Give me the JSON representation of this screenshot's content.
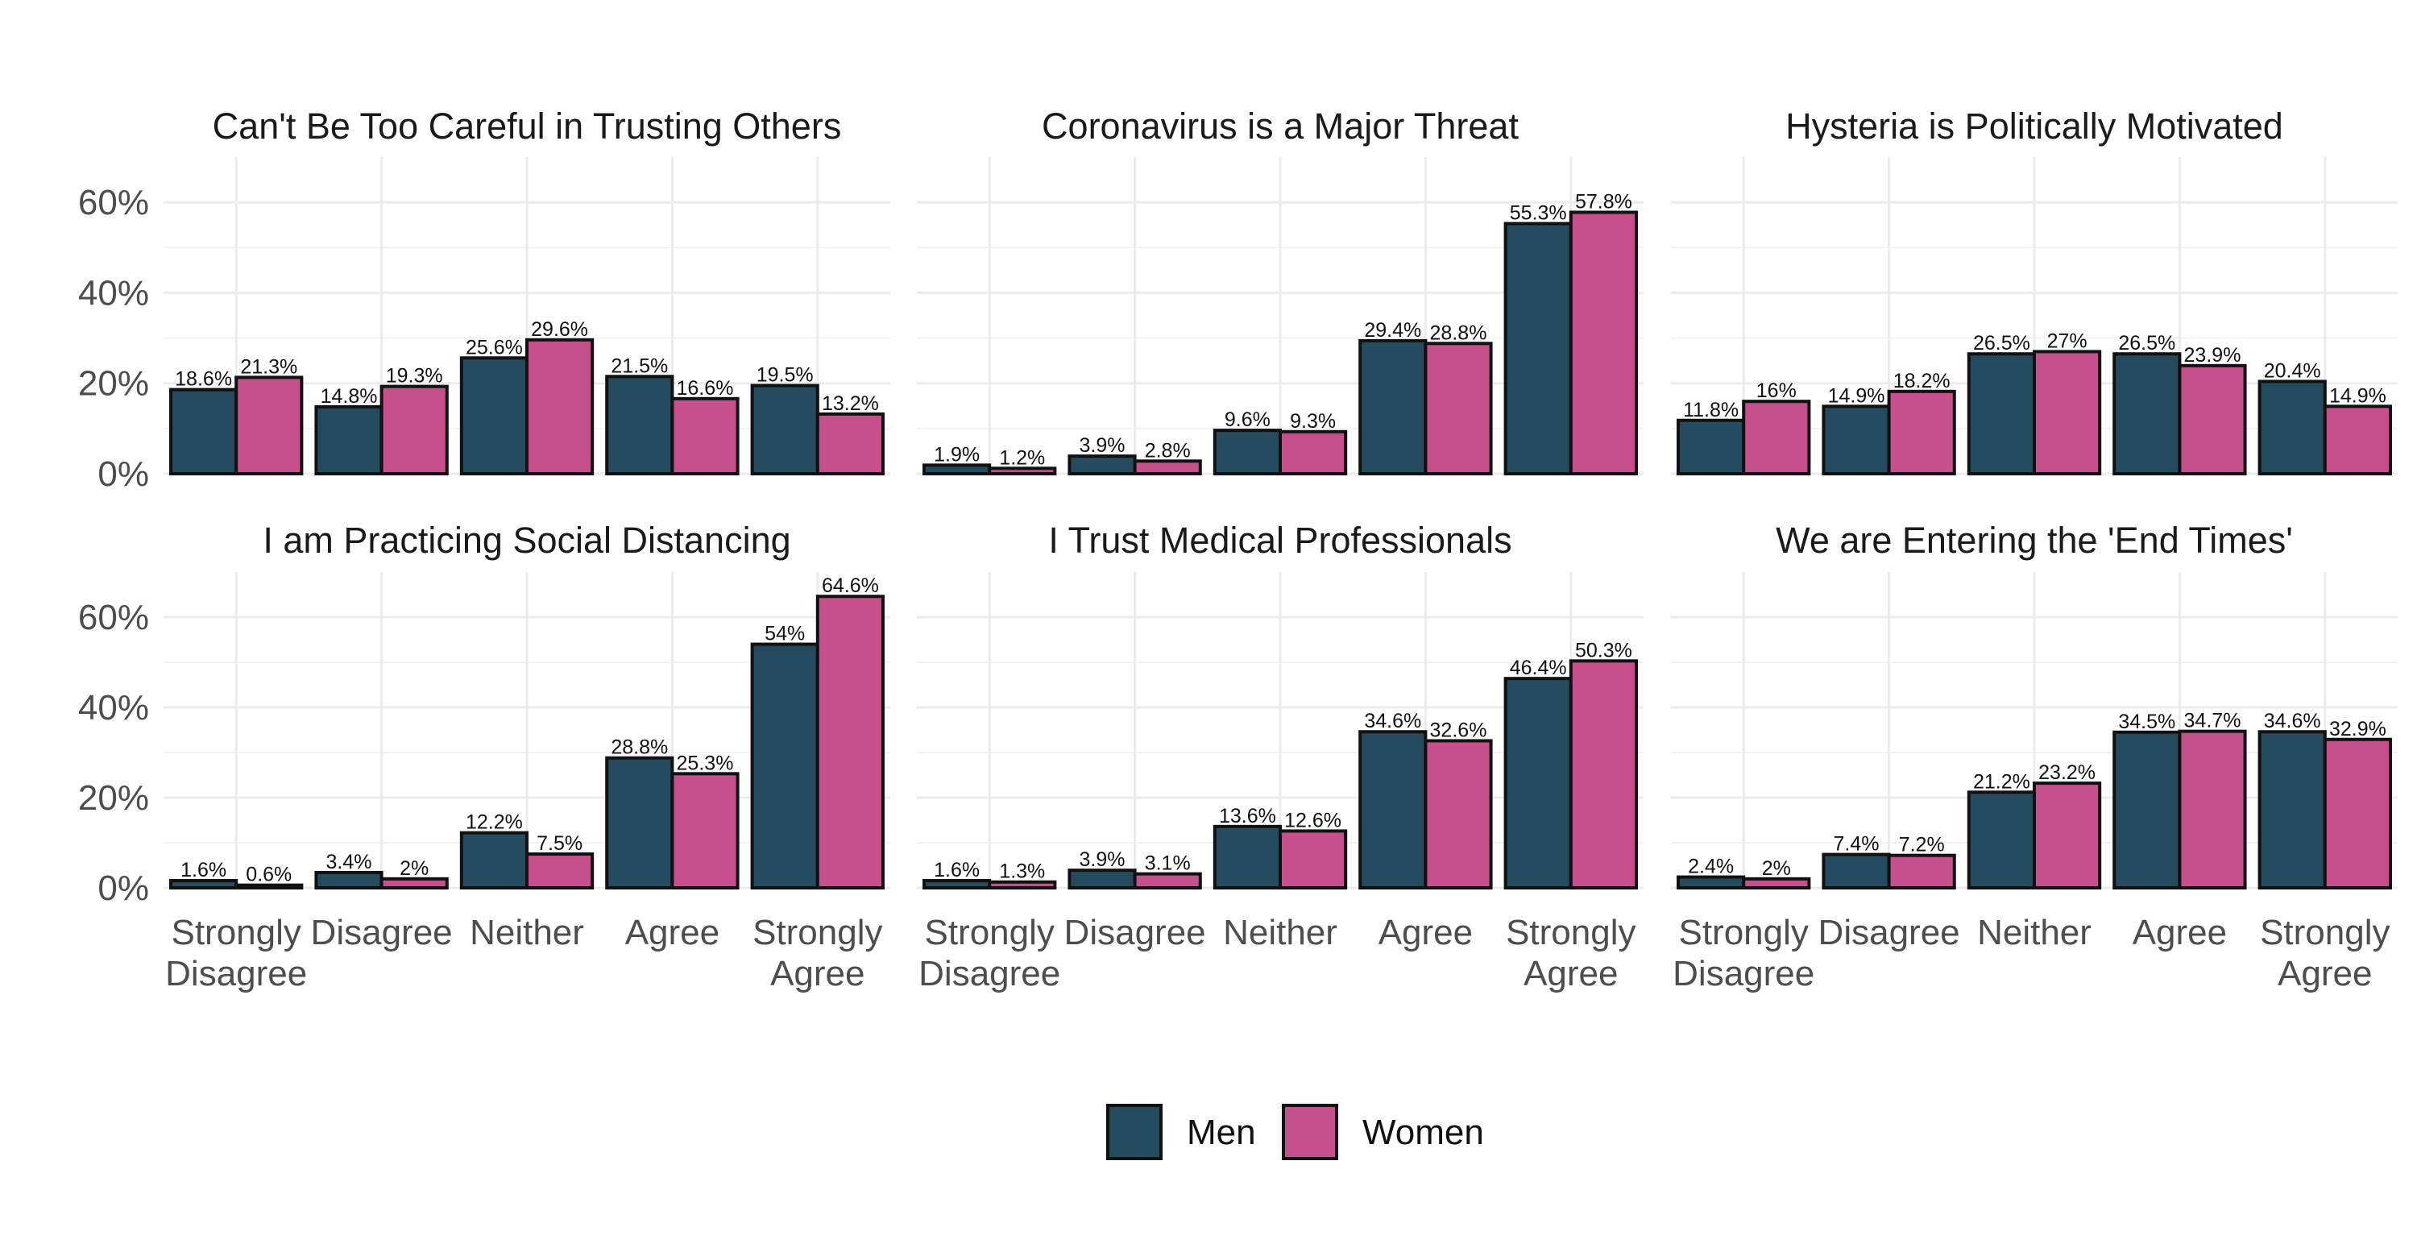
{
  "chart_data": {
    "type": "bar",
    "categories": [
      "Strongly Disagree",
      "Disagree",
      "Neither",
      "Agree",
      "Strongly Agree"
    ],
    "x_tick_lines": [
      [
        "Strongly",
        "Disagree"
      ],
      [
        "Disagree"
      ],
      [
        "Neither"
      ],
      [
        "Agree"
      ],
      [
        "Strongly",
        "Agree"
      ]
    ],
    "y_ticks": [
      "0%",
      "20%",
      "40%",
      "60%"
    ],
    "ylim": [
      0,
      70
    ],
    "grid": true,
    "legend_position": "bottom",
    "series_names": [
      "Men",
      "Women"
    ],
    "colors": {
      "Men": "#264b5f",
      "Women": "#c6508c"
    },
    "panels": [
      {
        "title": "Can't Be Too Careful in Trusting Others",
        "men": [
          18.6,
          14.8,
          25.6,
          21.5,
          19.5
        ],
        "women": [
          21.3,
          19.3,
          29.6,
          16.6,
          13.2
        ],
        "men_labels": [
          "18.6%",
          "14.8%",
          "25.6%",
          "21.5%",
          "19.5%"
        ],
        "women_labels": [
          "21.3%",
          "19.3%",
          "29.6%",
          "16.6%",
          "13.2%"
        ]
      },
      {
        "title": "Coronavirus is a Major Threat",
        "men": [
          1.9,
          3.9,
          9.6,
          29.4,
          55.3
        ],
        "women": [
          1.2,
          2.8,
          9.3,
          28.8,
          57.8
        ],
        "men_labels": [
          "1.9%",
          "3.9%",
          "9.6%",
          "29.4%",
          "55.3%"
        ],
        "women_labels": [
          "1.2%",
          "2.8%",
          "9.3%",
          "28.8%",
          "57.8%"
        ]
      },
      {
        "title": "Hysteria is Politically Motivated",
        "men": [
          11.8,
          14.9,
          26.5,
          26.5,
          20.4
        ],
        "women": [
          16,
          18.2,
          27,
          23.9,
          14.9
        ],
        "men_labels": [
          "11.8%",
          "14.9%",
          "26.5%",
          "26.5%",
          "20.4%"
        ],
        "women_labels": [
          "16%",
          "18.2%",
          "27%",
          "23.9%",
          "14.9%"
        ]
      },
      {
        "title": "I am Practicing Social Distancing",
        "men": [
          1.6,
          3.4,
          12.2,
          28.8,
          54
        ],
        "women": [
          0.6,
          2,
          7.5,
          25.3,
          64.6
        ],
        "men_labels": [
          "1.6%",
          "3.4%",
          "12.2%",
          "28.8%",
          "54%"
        ],
        "women_labels": [
          "0.6%",
          "2%",
          "7.5%",
          "25.3%",
          "64.6%"
        ]
      },
      {
        "title": "I Trust Medical Professionals",
        "men": [
          1.6,
          3.9,
          13.6,
          34.6,
          46.4
        ],
        "women": [
          1.3,
          3.1,
          12.6,
          32.6,
          50.3
        ],
        "men_labels": [
          "1.6%",
          "3.9%",
          "13.6%",
          "34.6%",
          "46.4%"
        ],
        "women_labels": [
          "1.3%",
          "3.1%",
          "12.6%",
          "32.6%",
          "50.3%"
        ]
      },
      {
        "title": "We are Entering the 'End Times'",
        "men": [
          2.4,
          7.4,
          21.2,
          34.5,
          34.6
        ],
        "women": [
          2,
          7.2,
          23.2,
          34.7,
          32.9
        ],
        "men_labels": [
          "2.4%",
          "7.4%",
          "21.2%",
          "34.5%",
          "34.6%"
        ],
        "women_labels": [
          "2%",
          "7.2%",
          "23.2%",
          "34.7%",
          "32.9%"
        ]
      }
    ]
  }
}
